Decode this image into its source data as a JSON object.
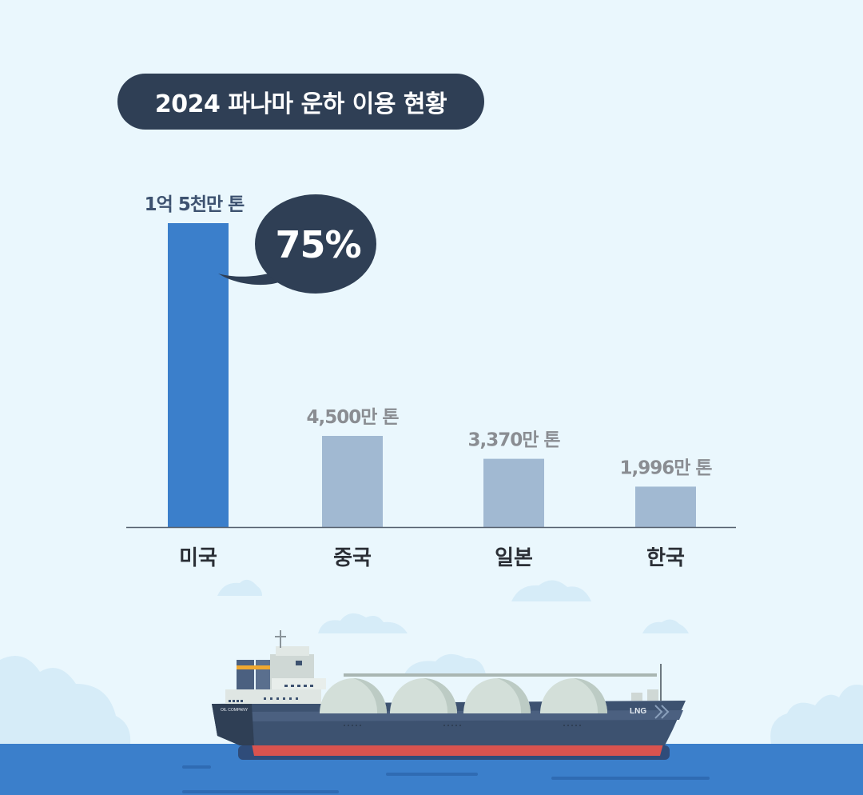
{
  "title": "2024 파나마 운하 이용 현황",
  "chart_data": {
    "type": "bar",
    "title": "2024 파나마 운하 이용 현황",
    "unit": "만 톤",
    "categories": [
      "미국",
      "중국",
      "일본",
      "한국"
    ],
    "values": [
      15000,
      4500,
      3370,
      1996
    ],
    "value_labels": [
      "1억 5천만 톤",
      "4,500만 톤",
      "3,370만 톤",
      "1,996만 톤"
    ],
    "highlight": {
      "category": "미국",
      "label": "75%"
    },
    "ylim": [
      0,
      15000
    ],
    "colors": {
      "highlight": "#3b7fcb",
      "normal": "#a1b9d2",
      "label_highlight": "#3d5270",
      "label_normal": "#8a8d92",
      "axis": "#55606e"
    }
  },
  "illustration": {
    "ship_label": "LNG",
    "company_label": "OIL COMPANY"
  }
}
